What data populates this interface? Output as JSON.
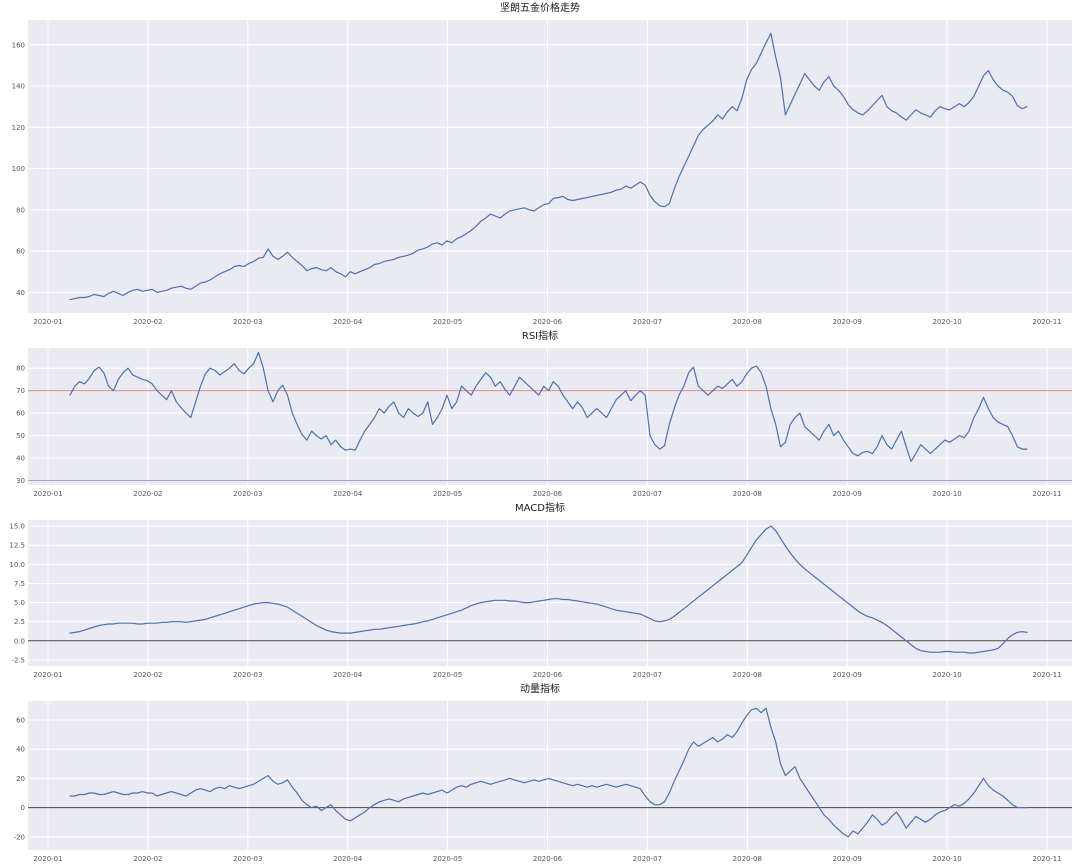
{
  "colors": {
    "line": "#4c72b0",
    "plot_background": "#eaeaf2",
    "grid": "#ffffff",
    "rsi_upper_ref": "#e57373",
    "rsi_lower_ref": "#8080d8",
    "zero_line": "#444444",
    "tick_text": "#555555"
  },
  "chart_data": [
    {
      "name": "price-trend",
      "type": "line",
      "title": "坚朗五金价格走势",
      "xlabel": "",
      "ylabel": "",
      "grid": true,
      "bg_color": "#eaeaf2",
      "grid_color": "#ffffff",
      "x_tick_labels": [
        "2020-01",
        "2020-02",
        "2020-03",
        "2020-04",
        "2020-05",
        "2020-06",
        "2020-07",
        "2020-08",
        "2020-09",
        "2020-10",
        "2020-11"
      ],
      "x_ticks": [
        0,
        1,
        2,
        3,
        4,
        5,
        6,
        7,
        8,
        9,
        10
      ],
      "xlim": [
        -0.2,
        10.25
      ],
      "x_start": 0.22,
      "x_end": 9.8,
      "y_ticks": [
        40,
        60,
        80,
        100,
        120,
        140,
        160
      ],
      "y_tick_labels": [
        "40",
        "60",
        "80",
        "100",
        "120",
        "140",
        "160"
      ],
      "ylim": [
        30,
        172
      ],
      "ref_lines": [],
      "series": [
        {
          "name": "price",
          "color": "#4c72b0",
          "values": [
            36.5,
            37,
            37.5,
            37.5,
            38,
            39,
            38.5,
            38,
            39.5,
            40.5,
            39.5,
            38.5,
            40,
            41,
            41.5,
            40.5,
            41,
            41.5,
            40,
            40.5,
            41,
            42,
            42.5,
            43,
            42,
            41.5,
            43,
            44.5,
            45,
            46,
            47.5,
            49,
            50,
            51,
            52.5,
            53,
            52.5,
            54,
            55,
            56.5,
            57,
            61,
            57.5,
            56,
            57.5,
            59.5,
            57,
            55,
            53,
            50.5,
            51.5,
            52,
            51,
            50.5,
            52,
            50,
            49,
            47.5,
            50,
            49,
            50,
            51,
            52,
            53.5,
            54,
            55,
            55.5,
            56,
            57,
            57.5,
            58,
            59,
            60.5,
            61,
            62,
            63.5,
            64,
            63,
            65,
            64,
            66,
            67,
            68.5,
            70,
            72,
            74.5,
            76,
            78,
            77,
            76,
            78,
            79.5,
            80,
            80.5,
            81,
            80,
            79.5,
            81,
            82.5,
            83,
            85.5,
            86,
            86.5,
            85,
            84.5,
            85,
            85.5,
            86,
            86.5,
            87,
            87.5,
            88,
            88.5,
            89.5,
            90,
            91.5,
            90.5,
            92,
            93.5,
            92,
            87,
            84,
            82,
            81.5,
            83,
            90,
            96,
            101,
            106,
            111,
            116,
            119,
            121,
            123,
            126,
            124,
            127.5,
            130,
            128,
            134,
            143,
            148,
            151,
            156,
            161,
            165.5,
            154,
            144,
            126,
            131,
            136,
            141,
            146,
            143,
            140,
            138,
            142,
            144.5,
            140,
            138,
            135,
            131,
            128.5,
            127,
            126,
            128,
            130.5,
            133,
            135.5,
            130,
            128,
            127,
            125,
            123.5,
            126,
            128.5,
            127,
            126,
            125,
            128,
            130,
            129,
            128.5,
            130,
            131.5,
            130,
            132,
            135,
            140,
            145,
            147.5,
            143,
            140,
            138,
            137,
            135,
            130.5,
            129,
            130
          ]
        }
      ]
    },
    {
      "name": "rsi",
      "type": "line",
      "title": "RSI指标",
      "xlabel": "",
      "ylabel": "",
      "grid": true,
      "bg_color": "#eaeaf2",
      "grid_color": "#ffffff",
      "x_tick_labels": [
        "2020-01",
        "2020-02",
        "2020-03",
        "2020-04",
        "2020-05",
        "2020-06",
        "2020-07",
        "2020-08",
        "2020-09",
        "2020-10",
        "2020-11"
      ],
      "x_ticks": [
        0,
        1,
        2,
        3,
        4,
        5,
        6,
        7,
        8,
        9,
        10
      ],
      "xlim": [
        -0.2,
        10.25
      ],
      "x_start": 0.22,
      "x_end": 9.8,
      "y_ticks": [
        30,
        40,
        50,
        60,
        70,
        80
      ],
      "y_tick_labels": [
        "30",
        "40",
        "50",
        "60",
        "70",
        "80"
      ],
      "ylim": [
        28,
        89
      ],
      "ref_lines": [
        {
          "name": "rsi-overbought-line",
          "y": 70,
          "color": "#e57373",
          "width": 0.8
        },
        {
          "name": "rsi-oversold-line",
          "y": 30,
          "color": "#8080d8",
          "width": 0.8
        }
      ],
      "series": [
        {
          "name": "rsi",
          "color": "#4c72b0",
          "values": [
            68,
            72,
            74,
            73,
            75.5,
            79,
            80.5,
            78,
            72,
            70,
            75,
            78,
            80,
            77,
            76,
            75,
            74.5,
            73,
            70,
            68,
            66,
            70,
            65,
            62.5,
            60,
            58,
            65,
            72,
            77.5,
            80,
            79,
            77,
            78.5,
            80,
            82,
            79,
            77.5,
            80,
            82,
            87,
            80,
            70,
            65,
            70,
            72.5,
            68,
            60,
            55,
            50.5,
            48,
            52,
            50,
            48.5,
            50,
            46,
            48,
            45,
            43.5,
            44,
            43.5,
            48,
            52,
            55,
            58,
            62,
            60,
            63,
            65,
            60,
            58,
            62,
            60,
            58.5,
            60,
            65,
            55,
            58,
            62,
            68,
            62,
            65,
            72,
            70,
            68,
            72,
            75,
            78,
            76,
            72,
            74,
            70.5,
            68,
            72,
            76,
            74,
            72,
            70,
            68,
            72,
            70,
            74,
            72,
            68,
            65,
            62,
            65,
            62.5,
            58,
            60,
            62,
            60,
            58,
            62,
            66,
            68,
            70,
            65.5,
            68,
            70,
            68,
            50,
            46,
            44,
            45.5,
            55,
            62,
            68,
            72,
            78,
            80.5,
            72,
            70,
            68,
            70,
            72,
            71,
            73,
            75,
            72,
            74,
            77.5,
            80,
            81,
            78,
            72,
            62,
            55,
            45,
            47,
            55,
            58,
            60,
            54,
            52,
            50,
            48,
            52,
            55,
            50,
            52,
            48,
            45,
            42,
            41,
            42.5,
            43,
            42,
            45,
            50,
            46,
            44,
            48,
            52,
            45,
            38.5,
            42,
            46,
            44,
            42,
            44,
            46,
            48,
            47,
            48.5,
            50,
            49,
            52,
            58,
            62,
            67,
            62,
            58,
            56,
            55,
            54,
            50,
            45,
            44,
            44
          ]
        }
      ]
    },
    {
      "name": "macd",
      "type": "line",
      "title": "MACD指标",
      "xlabel": "",
      "ylabel": "",
      "grid": true,
      "bg_color": "#eaeaf2",
      "grid_color": "#ffffff",
      "x_tick_labels": [
        "2020-01",
        "2020-02",
        "2020-03",
        "2020-04",
        "2020-05",
        "2020-06",
        "2020-07",
        "2020-08",
        "2020-09",
        "2020-10",
        "2020-11"
      ],
      "x_ticks": [
        0,
        1,
        2,
        3,
        4,
        5,
        6,
        7,
        8,
        9,
        10
      ],
      "xlim": [
        -0.2,
        10.25
      ],
      "x_start": 0.22,
      "x_end": 9.8,
      "y_ticks": [
        -2.5,
        0,
        2.5,
        5,
        7.5,
        10,
        12.5,
        15
      ],
      "y_tick_labels": [
        "-2.5",
        "0.0",
        "2.5",
        "5.0",
        "7.5",
        "10.0",
        "12.5",
        "15.0"
      ],
      "ylim": [
        -3.3,
        15.8
      ],
      "ref_lines": [
        {
          "name": "macd-zero-line",
          "y": 0,
          "color": "#444444",
          "width": 1
        }
      ],
      "series": [
        {
          "name": "macd",
          "color": "#4c72b0",
          "values": [
            1.0,
            1.1,
            1.2,
            1.4,
            1.6,
            1.8,
            2.0,
            2.1,
            2.2,
            2.2,
            2.3,
            2.3,
            2.3,
            2.3,
            2.2,
            2.2,
            2.3,
            2.3,
            2.3,
            2.4,
            2.4,
            2.5,
            2.5,
            2.5,
            2.4,
            2.5,
            2.6,
            2.7,
            2.8,
            3.0,
            3.2,
            3.4,
            3.6,
            3.8,
            4.0,
            4.2,
            4.4,
            4.6,
            4.8,
            4.9,
            5.0,
            5.0,
            4.9,
            4.8,
            4.6,
            4.4,
            4.0,
            3.6,
            3.2,
            2.8,
            2.4,
            2.0,
            1.7,
            1.4,
            1.2,
            1.1,
            1.0,
            1.0,
            1.0,
            1.1,
            1.2,
            1.3,
            1.4,
            1.5,
            1.5,
            1.6,
            1.7,
            1.8,
            1.9,
            2.0,
            2.1,
            2.2,
            2.3,
            2.5,
            2.6,
            2.8,
            3.0,
            3.2,
            3.4,
            3.6,
            3.8,
            4.0,
            4.3,
            4.6,
            4.8,
            5.0,
            5.1,
            5.2,
            5.3,
            5.3,
            5.3,
            5.2,
            5.2,
            5.1,
            5.0,
            5.0,
            5.1,
            5.2,
            5.3,
            5.4,
            5.5,
            5.5,
            5.4,
            5.4,
            5.3,
            5.2,
            5.1,
            5.0,
            4.9,
            4.8,
            4.6,
            4.4,
            4.2,
            4.0,
            3.9,
            3.8,
            3.7,
            3.6,
            3.5,
            3.2,
            2.9,
            2.6,
            2.5,
            2.6,
            2.8,
            3.2,
            3.7,
            4.2,
            4.7,
            5.2,
            5.7,
            6.2,
            6.7,
            7.2,
            7.7,
            8.2,
            8.7,
            9.2,
            9.7,
            10.2,
            11.2,
            12.2,
            13.2,
            13.9,
            14.6,
            15.0,
            14.4,
            13.4,
            12.4,
            11.5,
            10.7,
            10.0,
            9.4,
            8.9,
            8.4,
            7.9,
            7.4,
            6.9,
            6.4,
            5.9,
            5.4,
            4.9,
            4.4,
            3.9,
            3.5,
            3.2,
            3.0,
            2.7,
            2.4,
            2.0,
            1.5,
            1.0,
            0.5,
            0.0,
            -0.5,
            -1.0,
            -1.3,
            -1.4,
            -1.5,
            -1.5,
            -1.5,
            -1.4,
            -1.4,
            -1.5,
            -1.5,
            -1.5,
            -1.6,
            -1.6,
            -1.5,
            -1.4,
            -1.3,
            -1.2,
            -1.0,
            -0.4,
            0.3,
            0.8,
            1.1,
            1.2,
            1.1
          ]
        }
      ]
    },
    {
      "name": "momentum",
      "type": "line",
      "title": "动量指标",
      "xlabel": "",
      "ylabel": "",
      "grid": true,
      "bg_color": "#eaeaf2",
      "grid_color": "#ffffff",
      "x_tick_labels": [
        "2020-01",
        "2020-02",
        "2020-03",
        "2020-04",
        "2020-05",
        "2020-06",
        "2020-07",
        "2020-08",
        "2020-09",
        "2020-10",
        "2020-11"
      ],
      "x_ticks": [
        0,
        1,
        2,
        3,
        4,
        5,
        6,
        7,
        8,
        9,
        10
      ],
      "xlim": [
        -0.2,
        10.25
      ],
      "x_start": 0.22,
      "x_end": 9.8,
      "y_ticks": [
        -20,
        0,
        20,
        40,
        60
      ],
      "y_tick_labels": [
        "-20",
        "0",
        "20",
        "40",
        "60"
      ],
      "ylim": [
        -29,
        73
      ],
      "ref_lines": [
        {
          "name": "momentum-zero-line",
          "y": 0,
          "color": "#444444",
          "width": 1
        }
      ],
      "series": [
        {
          "name": "momentum",
          "color": "#4c72b0",
          "values": [
            8,
            8,
            9,
            9,
            10,
            10,
            9,
            9,
            10,
            11,
            10,
            9,
            9,
            10,
            10,
            11,
            10,
            10,
            8,
            9,
            10,
            11,
            10,
            9,
            8,
            10,
            12,
            13,
            12,
            11,
            13,
            14,
            13,
            15,
            14,
            13,
            14,
            15,
            16,
            18,
            20,
            22,
            18,
            16,
            17,
            19,
            14,
            10,
            5,
            2,
            0,
            1,
            -2,
            0,
            2,
            -2,
            -5,
            -8,
            -9,
            -7,
            -5,
            -3,
            0,
            2,
            4,
            5,
            6,
            5,
            4,
            6,
            7,
            8,
            9,
            10,
            9,
            10,
            11,
            12,
            10,
            12,
            14,
            15,
            14,
            16,
            17,
            18,
            17,
            16,
            17,
            18,
            19,
            20,
            19,
            18,
            17,
            18,
            19,
            18,
            19,
            20,
            19,
            18,
            17,
            16,
            15,
            16,
            15,
            14,
            15,
            14,
            15,
            16,
            15,
            14,
            15,
            16,
            15,
            14,
            13,
            8,
            4,
            2,
            2,
            4,
            10,
            18,
            25,
            32,
            40,
            45,
            42,
            44,
            46,
            48,
            45,
            47,
            50,
            48,
            52,
            58,
            63,
            67,
            68,
            65,
            68,
            55,
            45,
            30,
            22,
            25,
            28,
            20,
            15,
            10,
            5,
            0,
            -5,
            -8,
            -12,
            -15,
            -18,
            -20,
            -16,
            -18,
            -14,
            -10,
            -5,
            -8,
            -12,
            -10,
            -6,
            -3,
            -8,
            -14,
            -10,
            -6,
            -8,
            -10,
            -8,
            -5,
            -3,
            -2,
            0,
            2,
            1,
            3,
            6,
            10,
            15,
            20,
            15,
            12,
            10,
            8,
            5,
            2,
            0,
            0,
            0
          ]
        }
      ]
    }
  ]
}
